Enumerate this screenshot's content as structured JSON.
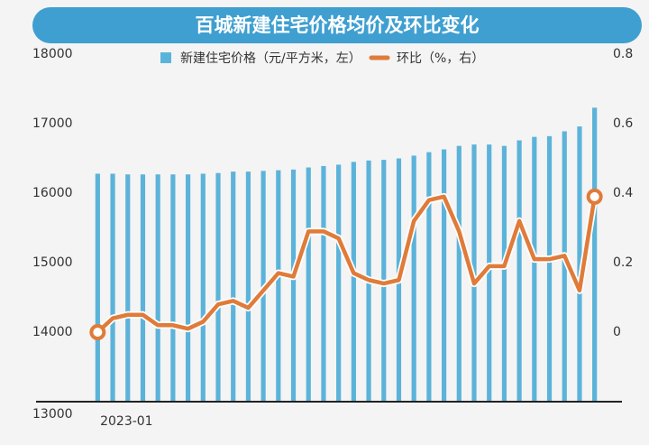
{
  "chart_data": {
    "type": "bar-line",
    "title": "百城新建住宅价格均价及环比变化",
    "categories": [
      "2023-01",
      null,
      null,
      null,
      null,
      null,
      null,
      null,
      null,
      null,
      null,
      null,
      null,
      null,
      null,
      null,
      null,
      null,
      null,
      null,
      null,
      null,
      null,
      null,
      null,
      null,
      null,
      null,
      null,
      null,
      null,
      null,
      null,
      null
    ],
    "series": [
      {
        "name": "新建住宅价格（元/平方米，左）",
        "type": "bar",
        "color": "#5cb3da",
        "values": [
          16280,
          16280,
          16270,
          16270,
          16270,
          16270,
          16270,
          16280,
          16290,
          16310,
          16310,
          16320,
          16330,
          16340,
          16370,
          16390,
          16410,
          16450,
          16470,
          16480,
          16500,
          16540,
          16590,
          16630,
          16680,
          16700,
          16700,
          16680,
          16760,
          16810,
          16820,
          16890,
          16960,
          17230
        ]
      },
      {
        "name": "环比（%，右）",
        "type": "line",
        "axis": "y2",
        "color": "#e07b39",
        "values": [
          0.0,
          0.04,
          0.05,
          0.05,
          0.02,
          0.02,
          0.01,
          0.03,
          0.08,
          0.09,
          0.07,
          0.12,
          0.17,
          0.16,
          0.29,
          0.29,
          0.27,
          0.17,
          0.15,
          0.14,
          0.15,
          0.32,
          0.38,
          0.39,
          0.29,
          0.14,
          0.19,
          0.19,
          0.32,
          0.21,
          0.21,
          0.22,
          0.12,
          0.39
        ]
      }
    ],
    "ylim": [
      13000,
      18000
    ],
    "yticks": [
      13000,
      14000,
      15000,
      16000,
      17000,
      18000
    ],
    "y2lim": [
      -0.2,
      0.8
    ],
    "y2ticks": [
      0,
      0.2,
      0.4,
      0.6,
      0.8
    ],
    "grid": false
  }
}
